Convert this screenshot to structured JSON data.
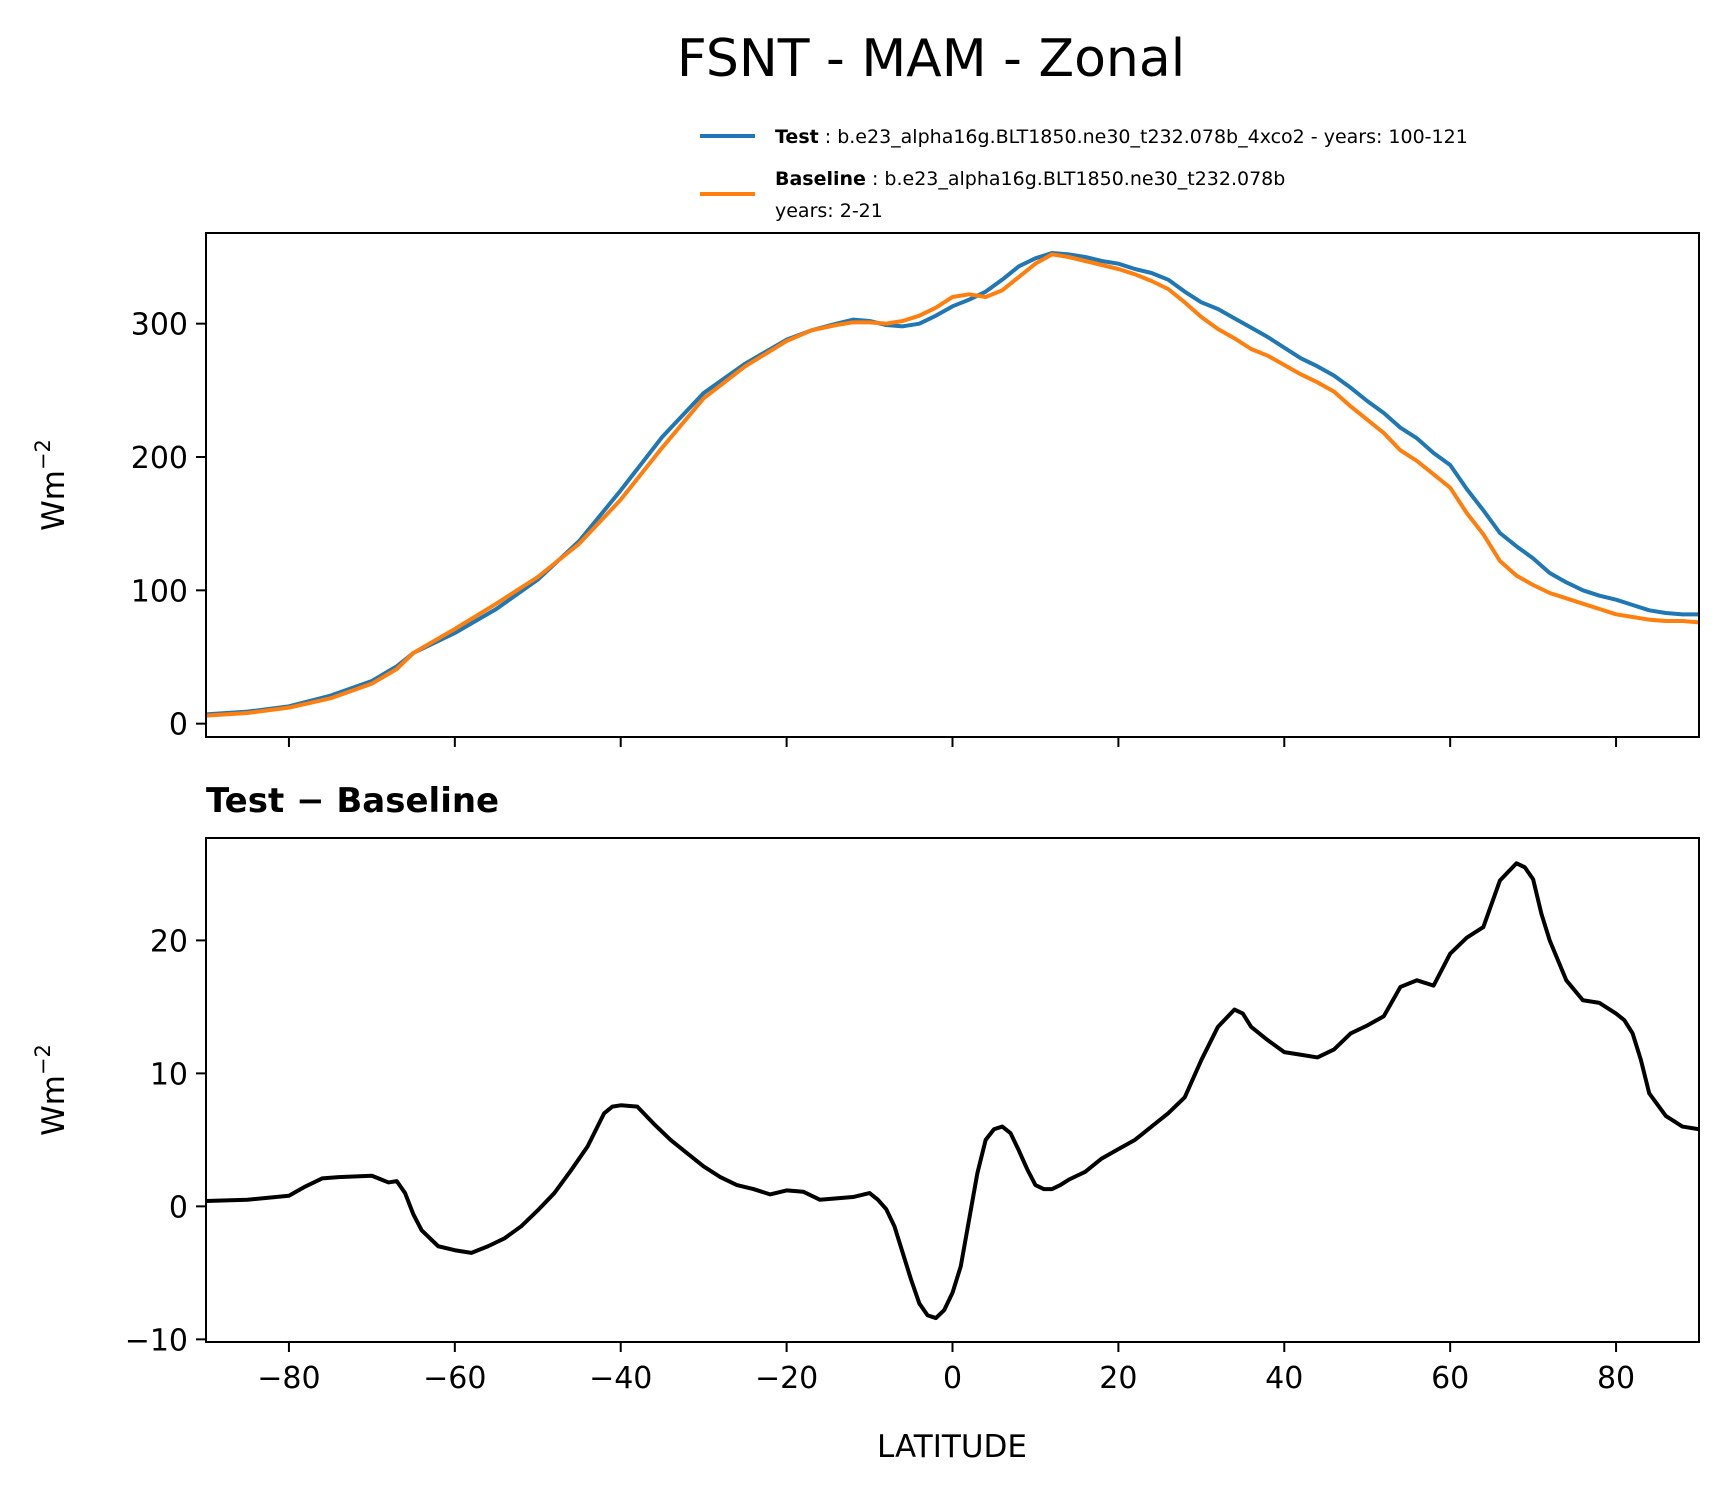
{
  "chart_data": {
    "type": "line",
    "title": "FSNT - MAM - Zonal",
    "xlabel": "LATITUDE",
    "xlim": [
      -90,
      90
    ],
    "x_ticks": [
      -80,
      -60,
      -40,
      -20,
      0,
      20,
      40,
      60,
      80
    ],
    "x_tick_labels": [
      "−80",
      "−60",
      "−40",
      "−20",
      "0",
      "20",
      "40",
      "60",
      "80"
    ],
    "colors": {
      "test": "#1f77b4",
      "baseline": "#ff7f0e",
      "diff": "#000000"
    },
    "top_panel": {
      "ylabel": "Wm",
      "ylabel_exp": "−2",
      "ylim": [
        -10,
        368
      ],
      "y_ticks": [
        0,
        100,
        200,
        300
      ],
      "y_tick_labels": [
        "0",
        "100",
        "200",
        "300"
      ],
      "legend": [
        {
          "bold": "Test",
          "text": " : b.e23_alpha16g.BLT1850.ne30_t232.078b_4xco2 - years: 100-121",
          "text2": ""
        },
        {
          "bold": "Baseline",
          "text": " : b.e23_alpha16g.BLT1850.ne30_t232.078b",
          "text2": "years: 2-21"
        }
      ],
      "series": [
        {
          "name": "Test",
          "x": [
            -90,
            -85,
            -80,
            -75,
            -70,
            -67,
            -65,
            -60,
            -55,
            -50,
            -45,
            -40,
            -35,
            -30,
            -25,
            -20,
            -17,
            -14,
            -12,
            -10,
            -8,
            -6,
            -4,
            -2,
            0,
            2,
            4,
            6,
            8,
            10,
            12,
            14,
            16,
            18,
            20,
            22,
            24,
            26,
            28,
            30,
            32,
            34,
            36,
            38,
            40,
            42,
            44,
            46,
            48,
            50,
            52,
            54,
            56,
            58,
            60,
            62,
            64,
            66,
            68,
            70,
            72,
            74,
            76,
            78,
            80,
            82,
            84,
            86,
            88,
            90
          ],
          "values": [
            7,
            9,
            13,
            21,
            32,
            43,
            53,
            68,
            86,
            108,
            137,
            175,
            215,
            248,
            270,
            288,
            295,
            300,
            303,
            302,
            299,
            298,
            300,
            306,
            313,
            318,
            324,
            333,
            343,
            349,
            353,
            352,
            350,
            347,
            345,
            341,
            338,
            333,
            324,
            316,
            311,
            304,
            297,
            290,
            282,
            274,
            268,
            261,
            252,
            242,
            233,
            222,
            214,
            203,
            194,
            176,
            160,
            143,
            133,
            124,
            113,
            106,
            100,
            96,
            93,
            89,
            85,
            83,
            82,
            82
          ]
        },
        {
          "name": "Baseline",
          "x": [
            -90,
            -85,
            -80,
            -75,
            -70,
            -67,
            -65,
            -60,
            -55,
            -50,
            -45,
            -40,
            -35,
            -30,
            -25,
            -20,
            -17,
            -14,
            -12,
            -10,
            -8,
            -6,
            -4,
            -2,
            0,
            2,
            4,
            6,
            8,
            10,
            12,
            14,
            16,
            18,
            20,
            22,
            24,
            26,
            28,
            30,
            32,
            34,
            36,
            38,
            40,
            42,
            44,
            46,
            48,
            50,
            52,
            54,
            56,
            58,
            60,
            62,
            64,
            66,
            68,
            70,
            72,
            74,
            76,
            78,
            80,
            82,
            84,
            86,
            88,
            90
          ],
          "values": [
            6,
            8,
            12,
            19,
            30,
            41,
            53,
            71,
            90,
            110,
            135,
            168,
            207,
            244,
            268,
            287,
            295,
            299,
            301,
            301,
            300,
            302,
            306,
            312,
            320,
            322,
            320,
            325,
            335,
            345,
            352,
            350,
            347,
            344,
            341,
            337,
            332,
            326,
            316,
            305,
            296,
            289,
            281,
            276,
            269,
            262,
            256,
            249,
            238,
            228,
            218,
            205,
            197,
            187,
            177,
            158,
            142,
            122,
            111,
            104,
            98,
            94,
            90,
            86,
            82,
            80,
            78,
            77,
            77,
            76
          ]
        }
      ]
    },
    "bottom_panel": {
      "title": "Test − Baseline",
      "ylabel": "Wm",
      "ylabel_exp": "−2",
      "ylim": [
        -10.2,
        27.7
      ],
      "y_ticks": [
        -10,
        0,
        10,
        20
      ],
      "y_tick_labels": [
        "−10",
        "0",
        "10",
        "20"
      ],
      "series": [
        {
          "name": "Test − Baseline",
          "x": [
            -90,
            -85,
            -80,
            -78,
            -76,
            -74,
            -70,
            -68,
            -67,
            -66,
            -65,
            -64,
            -62,
            -60,
            -58,
            -56,
            -54,
            -52,
            -50,
            -48,
            -46,
            -44,
            -42,
            -41,
            -40,
            -38,
            -36,
            -34,
            -32,
            -30,
            -28,
            -26,
            -24,
            -22,
            -20,
            -18,
            -16,
            -14,
            -12,
            -10,
            -9,
            -8,
            -7,
            -6,
            -5,
            -4,
            -3,
            -2,
            -1,
            0,
            1,
            2,
            3,
            4,
            5,
            6,
            7,
            8,
            9,
            10,
            11,
            12,
            13,
            14,
            16,
            18,
            20,
            22,
            24,
            26,
            28,
            30,
            32,
            34,
            35,
            36,
            38,
            40,
            42,
            44,
            46,
            48,
            50,
            52,
            54,
            56,
            58,
            60,
            62,
            64,
            66,
            68,
            69,
            70,
            71,
            72,
            73,
            74,
            76,
            78,
            80,
            81,
            82,
            83,
            84,
            86,
            88,
            90
          ],
          "values": [
            0.4,
            0.5,
            0.8,
            1.5,
            2.1,
            2.2,
            2.3,
            1.8,
            1.9,
            1.0,
            -0.6,
            -1.8,
            -3.0,
            -3.3,
            -3.5,
            -3.0,
            -2.4,
            -1.5,
            -0.3,
            1.0,
            2.7,
            4.5,
            7.0,
            7.5,
            7.6,
            7.5,
            6.2,
            5.0,
            4.0,
            3.0,
            2.2,
            1.6,
            1.3,
            0.9,
            1.2,
            1.1,
            0.5,
            0.6,
            0.7,
            1.0,
            0.5,
            -0.2,
            -1.5,
            -3.5,
            -5.5,
            -7.3,
            -8.2,
            -8.4,
            -7.8,
            -6.5,
            -4.5,
            -1.0,
            2.5,
            5.0,
            5.8,
            6.0,
            5.5,
            4.2,
            2.8,
            1.6,
            1.3,
            1.3,
            1.6,
            2.0,
            2.6,
            3.6,
            4.3,
            5.0,
            6.0,
            7.0,
            8.2,
            11.0,
            13.5,
            14.8,
            14.5,
            13.5,
            12.5,
            11.6,
            11.4,
            11.2,
            11.8,
            13.0,
            13.6,
            14.3,
            16.5,
            17.0,
            16.6,
            19.0,
            20.2,
            21.0,
            24.5,
            25.8,
            25.5,
            24.6,
            22.0,
            20.0,
            18.5,
            17.0,
            15.5,
            15.3,
            14.5,
            14.0,
            13.0,
            11.0,
            8.5,
            6.8,
            6.0,
            5.8
          ]
        }
      ]
    }
  }
}
